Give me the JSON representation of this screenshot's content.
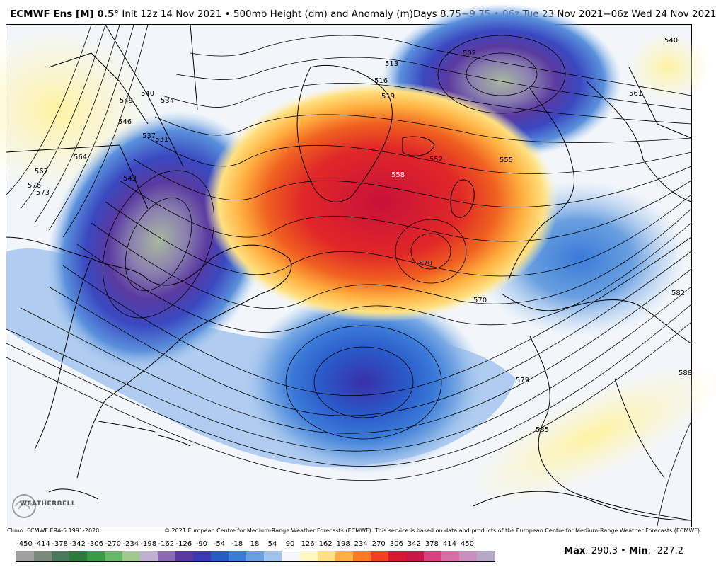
{
  "header": {
    "model": "ECMWF Ens [M] 0.5",
    "degree": "°",
    "init": "Init 12z 14 Nov 2021",
    "bullet1": "•",
    "product": "500mb Height (dm) and Anomaly (m)",
    "valid": "Days 8.75−9.75",
    "bullet2": "•",
    "valid_range": "06z Tue 23 Nov 2021−06z Wed 24 Nov 2021"
  },
  "footer": {
    "climo": "Climo: ECMWF ERA-5 1991-2020",
    "copyright": "© 2021 European Centre for Medium-Range Weather Forecasts (ECMWF). This service is based on data and products of the European Centre for Medium-Range Weather Forecasts (ECMWF).",
    "max_label": "Max",
    "max_value": ": 290.3",
    "sep": " • ",
    "min_label": "Min",
    "min_value": ": -227.2"
  },
  "logo": {
    "text": "WEATHERBELL"
  },
  "legend": {
    "ticks": [
      "-450",
      "-414",
      "-378",
      "-342",
      "-306",
      "-270",
      "-234",
      "-198",
      "-162",
      "-126",
      "-90",
      "-54",
      "-18",
      "18",
      "54",
      "90",
      "126",
      "162",
      "198",
      "234",
      "270",
      "306",
      "342",
      "378",
      "414",
      "450"
    ],
    "colors": [
      "#a0a0a0",
      "#7a8a7a",
      "#4a7a5a",
      "#2e7a3e",
      "#3a9a4a",
      "#6ab86a",
      "#a0c890",
      "#c0b0d0",
      "#8a6ab0",
      "#5a3aa0",
      "#3a3ab8",
      "#2a5ac8",
      "#3a7ad8",
      "#6aa0e0",
      "#a0c4ec",
      "#f4f6fb",
      "#fff8c0",
      "#ffe080",
      "#ffb040",
      "#ff7a20",
      "#f04020",
      "#d81830",
      "#c81848",
      "#d84080",
      "#d870a8",
      "#c890c0",
      "#b8a8c8"
    ]
  },
  "contour_labels": [
    "502",
    "513",
    "516",
    "519",
    "534",
    "537",
    "540",
    "543",
    "546",
    "549",
    "552",
    "555",
    "558",
    "561",
    "564",
    "567",
    "570",
    "570",
    "573",
    "576",
    "579",
    "582",
    "585",
    "588",
    "531",
    "540"
  ],
  "map": {
    "land_color": "#000000",
    "positive_anomaly_color": "#d81830",
    "negative_anomaly_color": "#3a3ab8"
  }
}
